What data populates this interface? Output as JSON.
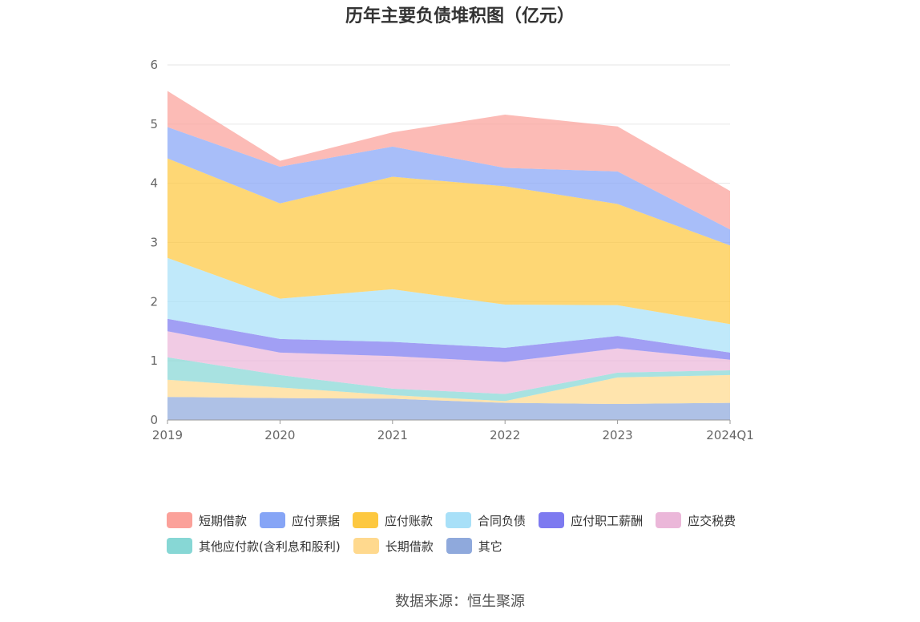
{
  "chart_data": {
    "type": "area",
    "stacked": true,
    "title": "历年主要负债堆积图（亿元）",
    "xlabel": "",
    "ylabel": "",
    "categories": [
      "2019",
      "2020",
      "2021",
      "2022",
      "2023",
      "2024Q1"
    ],
    "ylim": [
      0,
      6
    ],
    "yticks": [
      0,
      1,
      2,
      3,
      4,
      5,
      6
    ],
    "grid": true,
    "legend_position": "bottom",
    "series": [
      {
        "name": "其它",
        "color": "#8fa9dc",
        "values": [
          0.39,
          0.37,
          0.36,
          0.29,
          0.27,
          0.29
        ]
      },
      {
        "name": "长期借款",
        "color": "#ffd98e",
        "values": [
          0.29,
          0.18,
          0.06,
          0.03,
          0.45,
          0.47
        ]
      },
      {
        "name": "其他应付款(含利息和股利)",
        "color": "#87d7d5",
        "values": [
          0.38,
          0.21,
          0.11,
          0.12,
          0.08,
          0.08
        ]
      },
      {
        "name": "应交税费",
        "color": "#ebb7d9",
        "values": [
          0.44,
          0.38,
          0.55,
          0.54,
          0.41,
          0.18
        ]
      },
      {
        "name": "应付职工薪酬",
        "color": "#7d7af0",
        "values": [
          0.21,
          0.23,
          0.24,
          0.24,
          0.21,
          0.12
        ]
      },
      {
        "name": "合同负债",
        "color": "#a8e0f8",
        "values": [
          1.03,
          0.68,
          0.89,
          0.73,
          0.52,
          0.48
        ]
      },
      {
        "name": "应付账款",
        "color": "#fdc840",
        "values": [
          1.68,
          1.61,
          1.9,
          2.0,
          1.71,
          1.33
        ]
      },
      {
        "name": "应付票据",
        "color": "#86a5f6",
        "values": [
          0.53,
          0.62,
          0.51,
          0.31,
          0.55,
          0.27
        ]
      },
      {
        "name": "短期借款",
        "color": "#fba19a",
        "values": [
          0.61,
          0.1,
          0.24,
          0.9,
          0.76,
          0.65
        ]
      }
    ],
    "legend_order": [
      "短期借款",
      "应付票据",
      "应付账款",
      "合同负债",
      "应付职工薪酬",
      "应交税费",
      "其他应付款(含利息和股利)",
      "长期借款",
      "其它"
    ],
    "source": "数据来源：恒生聚源"
  }
}
